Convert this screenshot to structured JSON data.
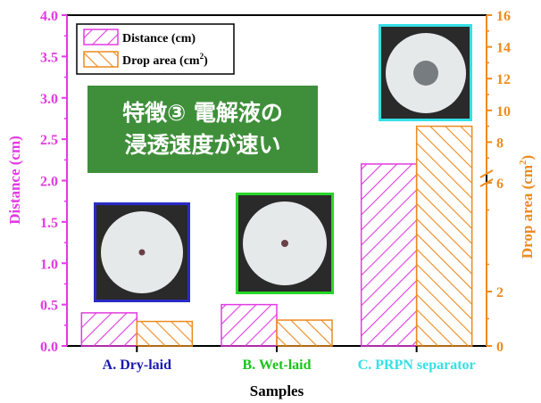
{
  "banner": {
    "line1": "特徴③ 電解液の",
    "line2": "浸透速度が速い"
  },
  "chart_data": {
    "type": "bar",
    "categories": [
      "A. Dry-laid",
      "B. Wet-laid",
      "C. PRPN separator"
    ],
    "category_colors": [
      "#1a1ab0",
      "#19c419",
      "#35e0e6"
    ],
    "xlabel": "Samples",
    "left_axis": {
      "label": "Distance (cm)",
      "color": "#e23be2",
      "ylim": [
        0,
        4.0
      ],
      "ticks": [
        "0.0",
        "0.5",
        "1.0",
        "1.5",
        "2.0",
        "2.5",
        "3.0",
        "3.5",
        "4.0"
      ]
    },
    "right_axis": {
      "label_main": "Drop area (cm",
      "label_sup": "2",
      "label_end": ")",
      "color": "#ec8b1e",
      "scale": "broken",
      "lower_range": [
        0,
        6
      ],
      "upper_range": [
        6,
        16
      ],
      "ticks": [
        "0",
        "2",
        "6",
        "8",
        "10",
        "12",
        "14",
        "16"
      ]
    },
    "series": [
      {
        "name": "Distance (cm)",
        "axis": "left",
        "color": "#e23be2",
        "hatch": "forward",
        "values": [
          0.4,
          0.5,
          2.2
        ]
      },
      {
        "name": "Drop area (cm²)",
        "axis": "right",
        "color": "#ec8b1e",
        "hatch": "backward",
        "values": [
          0.9,
          0.95,
          9.0
        ]
      }
    ],
    "legend": {
      "position": "top-left",
      "items": [
        {
          "label_main": "Distance (cm)",
          "label_sup": ""
        },
        {
          "label_main": "Drop area (cm",
          "label_sup": "2",
          "label_end": ")"
        }
      ]
    },
    "grid": false
  }
}
